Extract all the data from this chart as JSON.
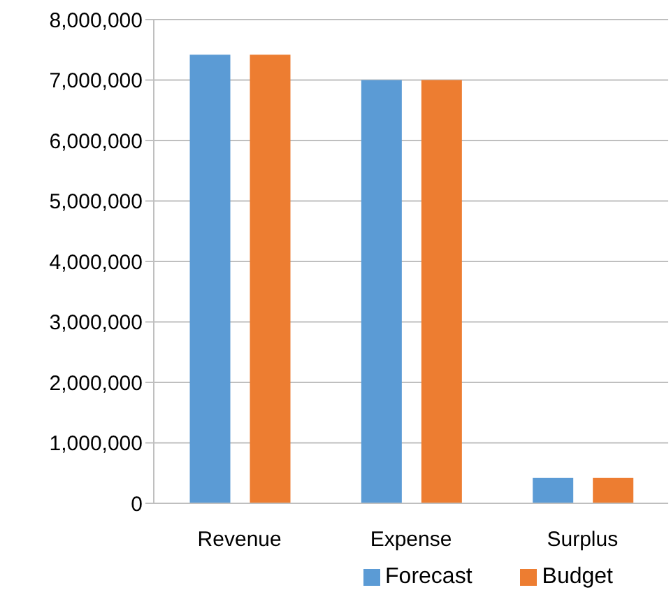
{
  "chart_data": {
    "type": "bar",
    "categories": [
      "Revenue",
      "Expense",
      "Surplus"
    ],
    "series": [
      {
        "name": "Forecast",
        "color": "#5b9bd5",
        "values": [
          7420000,
          7000000,
          420000
        ]
      },
      {
        "name": "Budget",
        "color": "#ed7d31",
        "values": [
          7420000,
          7000000,
          420000
        ]
      }
    ],
    "ylim": [
      0,
      8000000
    ],
    "yticks": [
      {
        "value": 0,
        "label": "0"
      },
      {
        "value": 1000000,
        "label": "1,000,000"
      },
      {
        "value": 2000000,
        "label": "2,000,000"
      },
      {
        "value": 3000000,
        "label": "3,000,000"
      },
      {
        "value": 4000000,
        "label": "4,000,000"
      },
      {
        "value": 5000000,
        "label": "5,000,000"
      },
      {
        "value": 6000000,
        "label": "6,000,000"
      },
      {
        "value": 7000000,
        "label": "7,000,000"
      },
      {
        "value": 8000000,
        "label": "8,000,000"
      }
    ],
    "grid": "y",
    "legend": "bottom"
  }
}
